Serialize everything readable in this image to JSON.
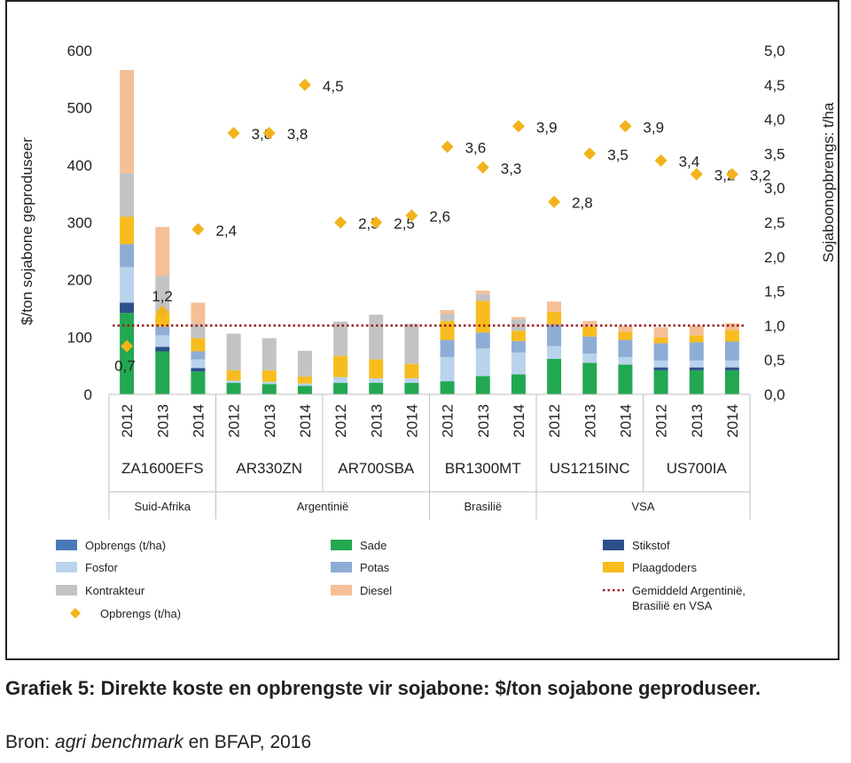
{
  "chart_data": {
    "type": "bar",
    "stacked": true,
    "y_left": {
      "label": "$/ton sojabone geproduseer",
      "ylim": [
        0,
        600
      ],
      "ticks": [
        "0",
        "100",
        "200",
        "300",
        "400",
        "500",
        "600"
      ]
    },
    "y_right": {
      "label": "Sojaboonopbrengs: t/ha",
      "ylim": [
        0,
        5
      ],
      "ticks": [
        "0,0",
        "0,5",
        "1,0",
        "1,5",
        "2,0",
        "2,5",
        "3,0",
        "3,5",
        "4,0",
        "4,5",
        "5,0"
      ]
    },
    "groups": [
      {
        "farm": "ZA1600EFS",
        "country": "Suid-Afrika",
        "years": [
          "2012",
          "2013",
          "2014"
        ]
      },
      {
        "farm": "AR330ZN",
        "country": "",
        "years": [
          "2012",
          "2013",
          "2014"
        ]
      },
      {
        "farm": "AR700SBA",
        "country": "Argentinië",
        "years": [
          "2012",
          "2013",
          "2014"
        ]
      },
      {
        "farm": "BR1300MT",
        "country": "Brasilië",
        "years": [
          "2012",
          "2013",
          "2014"
        ]
      },
      {
        "farm": "US1215INC",
        "country": "",
        "years": [
          "2012",
          "2013",
          "2014"
        ]
      },
      {
        "farm": "US700IA",
        "country": "VSA",
        "years": [
          "2012",
          "2013",
          "2014"
        ]
      }
    ],
    "countries": [
      {
        "name": "Suid-Afrika",
        "span": [
          0,
          0
        ]
      },
      {
        "name": "Argentinië",
        "span": [
          1,
          2
        ]
      },
      {
        "name": "Brasilië",
        "span": [
          3,
          3
        ]
      },
      {
        "name": "VSA",
        "span": [
          4,
          5
        ]
      }
    ],
    "series": [
      {
        "name": "Sade",
        "color": "#22a851",
        "values": [
          142,
          75,
          40,
          20,
          18,
          15,
          20,
          20,
          20,
          23,
          32,
          35,
          62,
          55,
          52,
          42,
          42,
          42
        ]
      },
      {
        "name": "Stikstof",
        "color": "#2d4f8a",
        "values": [
          18,
          8,
          6,
          0,
          0,
          0,
          0,
          0,
          0,
          0,
          0,
          0,
          0,
          0,
          0,
          5,
          5,
          5
        ]
      },
      {
        "name": "Fosfor",
        "color": "#b9d3ec",
        "values": [
          62,
          20,
          15,
          4,
          4,
          4,
          10,
          8,
          8,
          42,
          48,
          38,
          22,
          16,
          13,
          12,
          12,
          12
        ]
      },
      {
        "name": "Potas",
        "color": "#8eadd6",
        "values": [
          40,
          15,
          14,
          0,
          0,
          0,
          0,
          0,
          0,
          30,
          28,
          20,
          38,
          30,
          30,
          30,
          32,
          33
        ]
      },
      {
        "name": "Plaagdoders",
        "color": "#f7bd1f",
        "values": [
          48,
          24,
          23,
          18,
          20,
          12,
          37,
          33,
          25,
          33,
          55,
          18,
          22,
          17,
          14,
          10,
          12,
          20
        ]
      },
      {
        "name": "Kontrakteur",
        "color": "#c3c3c3",
        "values": [
          76,
          65,
          25,
          64,
          56,
          45,
          60,
          78,
          70,
          12,
          12,
          20,
          0,
          0,
          0,
          0,
          0,
          0
        ]
      },
      {
        "name": "Diesel",
        "color": "#f5bf97",
        "values": [
          180,
          85,
          37,
          0,
          0,
          0,
          0,
          0,
          0,
          7,
          6,
          4,
          18,
          10,
          10,
          18,
          16,
          12
        ]
      }
    ],
    "yield_series": {
      "name": "Opbrengs (t/ha)",
      "color": "#f2b31b",
      "values": [
        0.7,
        1.2,
        2.4,
        3.8,
        3.8,
        4.5,
        2.5,
        2.5,
        2.6,
        3.6,
        3.3,
        3.9,
        2.8,
        3.5,
        3.9,
        3.4,
        3.2,
        3.2
      ],
      "labels": [
        "0,7",
        "1,2",
        "2,4",
        "3,8",
        "3,8",
        "4,5",
        "2,5",
        "2,5",
        "2,6",
        "3,6",
        "3,3",
        "3,9",
        "2,8",
        "3,5",
        "3,9",
        "3,4",
        "3,2",
        "3,2"
      ]
    },
    "reference_line": {
      "name": "Gemiddeld Argentinië, Brasilië en VSA",
      "value": 1.0,
      "axis": "right",
      "color": "#9b1c1c",
      "style": "dotted"
    },
    "legend": {
      "placement": "bottom",
      "items": [
        {
          "label": "Opbrengs (t/ha)",
          "kind": "swatch",
          "color": "#4a79b9"
        },
        {
          "label": "Sade",
          "kind": "swatch",
          "color": "#22a851"
        },
        {
          "label": "Stikstof",
          "kind": "swatch",
          "color": "#2d4f8a"
        },
        {
          "label": "Fosfor",
          "kind": "swatch",
          "color": "#b9d3ec"
        },
        {
          "label": "Potas",
          "kind": "swatch",
          "color": "#8eadd6"
        },
        {
          "label": "Plaagdoders",
          "kind": "swatch",
          "color": "#f7bd1f"
        },
        {
          "label": "Kontrakteur",
          "kind": "swatch",
          "color": "#c3c3c3"
        },
        {
          "label": "Diesel",
          "kind": "swatch",
          "color": "#f5bf97"
        },
        {
          "label": "Gemiddeld Argentinië, Brasilië en VSA",
          "kind": "dotted",
          "color": "#9b1c1c"
        },
        {
          "label": "Opbrengs (t/ha)",
          "kind": "diamond",
          "color": "#f2b31b"
        }
      ]
    }
  },
  "caption": {
    "title": "Grafiek 5: Direkte koste en opbrengste vir sojabone: $/ton sojabone geproduseer.",
    "source_prefix": "Bron: ",
    "source_italic": "agri benchmark",
    "source_suffix": " en BFAP, 2016"
  }
}
